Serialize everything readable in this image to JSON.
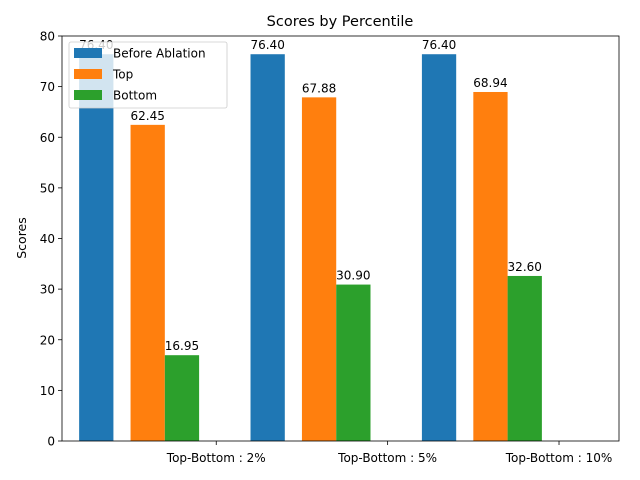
{
  "chart_data": {
    "type": "bar",
    "title": "Scores by Percentile",
    "xlabel": "",
    "ylabel": "Scores",
    "ylim": [
      0,
      80
    ],
    "yticks": [
      0,
      10,
      20,
      30,
      40,
      50,
      60,
      70,
      80
    ],
    "categories": [
      "Top-Bottom : 2%",
      "Top-Bottom : 5%",
      "Top-Bottom : 10%"
    ],
    "series": [
      {
        "name": "Before Ablation",
        "color": "#1f77b4",
        "values": [
          76.4,
          76.4,
          76.4
        ],
        "labels": [
          "76.40",
          "76.40",
          "76.40"
        ]
      },
      {
        "name": "Top",
        "color": "#ff7f0e",
        "values": [
          62.45,
          67.88,
          68.94
        ],
        "labels": [
          "62.45",
          "67.88",
          "68.94"
        ]
      },
      {
        "name": "Bottom",
        "color": "#2ca02c",
        "values": [
          16.95,
          30.9,
          32.6
        ],
        "labels": [
          "16.95",
          "30.90",
          "32.60"
        ]
      }
    ],
    "legend_position": "top-left",
    "grid": false
  }
}
